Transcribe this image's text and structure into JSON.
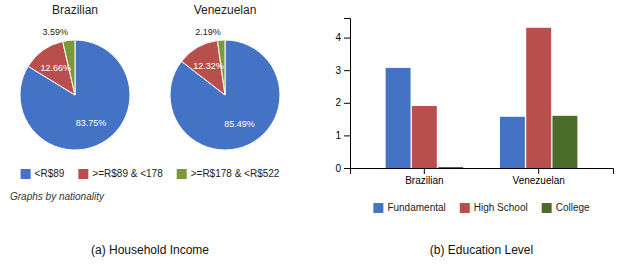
{
  "chart_data": [
    {
      "type": "pie",
      "title": "(a) Household Income",
      "categories": [
        "<R$89",
        ">=R$89 & <178",
        ">=R$178 & <R$522"
      ],
      "colors": [
        "#4472c4",
        "#b94f4c",
        "#7a9a3a"
      ],
      "series": [
        {
          "name": "Brazilian",
          "values": [
            83.75,
            12.66,
            3.59
          ],
          "value_labels": [
            "83.75%",
            "12.66%",
            "3.59%"
          ]
        },
        {
          "name": "Venezuelan",
          "values": [
            85.49,
            12.32,
            2.19
          ],
          "value_labels": [
            "85.49%",
            "12.32%",
            "2.19%"
          ]
        }
      ],
      "data_labels": true,
      "legend": "bottom",
      "annotations": [
        "Graphs by nationality"
      ]
    },
    {
      "type": "bar",
      "title": "(b) Education Level",
      "categories": [
        "Brazilian",
        "Venezuelan"
      ],
      "series": [
        {
          "name": "Fundamental",
          "color": "#4472c4",
          "values": [
            3.07,
            1.57
          ]
        },
        {
          "name": "High School",
          "color": "#b94f4c",
          "values": [
            1.9,
            4.3
          ]
        },
        {
          "name": "College",
          "color": "#4a6e2a",
          "values": [
            0.03,
            1.6
          ]
        }
      ],
      "ylim": [
        0,
        4.6
      ],
      "yticks": [
        0,
        1,
        2,
        3,
        4
      ],
      "legend": "bottom"
    }
  ]
}
